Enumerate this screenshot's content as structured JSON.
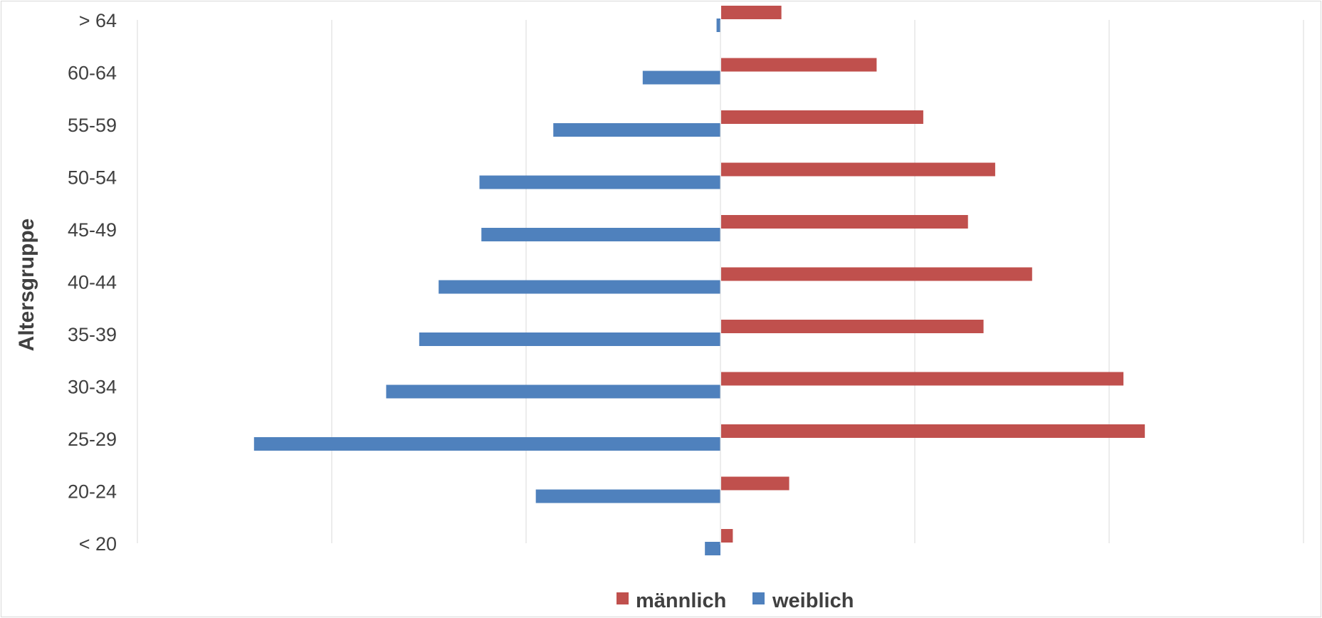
{
  "chart_data": {
    "type": "bar",
    "orientation": "horizontal",
    "subtype": "population-pyramid",
    "categories": [
      "< 20",
      "20-24",
      "25-29",
      "30-34",
      "35-39",
      "40-44",
      "45-49",
      "50-54",
      "55-59",
      "60-64",
      "> 64"
    ],
    "series": [
      {
        "name": "männlich",
        "color": "#c0504d",
        "values": [
          0.3,
          1.75,
          10.9,
          10.35,
          6.75,
          8.0,
          6.35,
          7.05,
          5.2,
          4.0,
          1.55
        ]
      },
      {
        "name": "weiblich",
        "color": "#4f81bd",
        "values": [
          0.4,
          4.75,
          12.0,
          8.6,
          7.75,
          7.25,
          6.15,
          6.2,
          4.3,
          2.0,
          0.1
        ]
      }
    ],
    "ylabel": "Altersgruppe",
    "xlabel": "",
    "xlim": [
      -15,
      15
    ],
    "x_tick_labels_visible": false,
    "grid": true,
    "legend_position": "bottom"
  }
}
